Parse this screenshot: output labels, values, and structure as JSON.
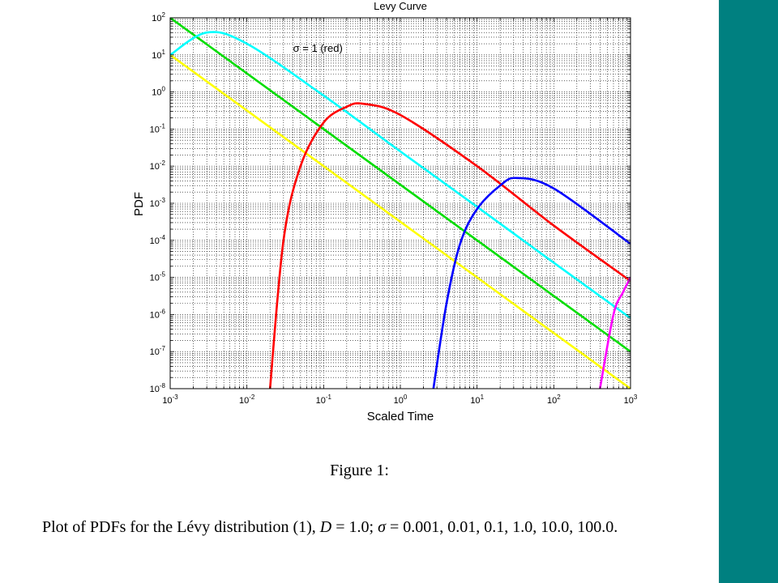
{
  "sidebar": {
    "color": "#008080"
  },
  "chart_data": {
    "type": "line",
    "title": "Levy Curve",
    "xlabel": "Scaled Time",
    "ylabel": "PDF",
    "xscale": "log",
    "yscale": "log",
    "xlim": [
      0.001,
      1000
    ],
    "ylim": [
      1e-08,
      100
    ],
    "grid": true,
    "x_tick_labels": [
      [
        "10",
        "-3"
      ],
      [
        "10",
        "-2"
      ],
      [
        "10",
        "-1"
      ],
      [
        "10",
        "0"
      ],
      [
        "10",
        "1"
      ],
      [
        "10",
        "2"
      ],
      [
        "10",
        "3"
      ]
    ],
    "y_tick_labels": [
      [
        "10",
        "-8"
      ],
      [
        "10",
        "-7"
      ],
      [
        "10",
        "-6"
      ],
      [
        "10",
        "-5"
      ],
      [
        "10",
        "-4"
      ],
      [
        "10",
        "-3"
      ],
      [
        "10",
        "-2"
      ],
      [
        "10",
        "-1"
      ],
      [
        "10",
        "0"
      ],
      [
        "10",
        "1"
      ],
      [
        "10",
        "2"
      ]
    ],
    "annotation": {
      "text": "σ = 1 (red)",
      "x": 0.04,
      "y": 12
    },
    "series": [
      {
        "color": "#ffff00",
        "points": [
          [
            0.001,
            10
          ],
          [
            1000,
            1e-08
          ]
        ]
      },
      {
        "color": "#00dd00",
        "points": [
          [
            0.001,
            100
          ],
          [
            1000,
            1e-07
          ]
        ]
      },
      {
        "color": "#00ffff",
        "points": [
          [
            0.001,
            10
          ],
          [
            0.003,
            40
          ],
          [
            0.01,
            20
          ],
          [
            0.1,
            0.8
          ],
          [
            1,
            0.025
          ],
          [
            10,
            0.0008
          ],
          [
            100,
            2.5e-05
          ],
          [
            1000,
            8e-07
          ]
        ]
      },
      {
        "color": "#ff0000",
        "points": [
          [
            0.02,
            1e-08
          ],
          [
            0.03,
            0.0001
          ],
          [
            0.05,
            0.01
          ],
          [
            0.1,
            0.15
          ],
          [
            0.2,
            0.4
          ],
          [
            0.33,
            0.48
          ],
          [
            1,
            0.24
          ],
          [
            10,
            0.01
          ],
          [
            100,
            0.00025
          ],
          [
            1000,
            8e-06
          ]
        ]
      },
      {
        "color": "#0000ff",
        "points": [
          [
            2.7,
            1e-08
          ],
          [
            4,
            2e-06
          ],
          [
            6,
            8e-05
          ],
          [
            10,
            0.0007
          ],
          [
            20,
            0.003
          ],
          [
            33,
            0.0048
          ],
          [
            100,
            0.0025
          ],
          [
            1000,
            8e-05
          ]
        ]
      },
      {
        "color": "#ff00ff",
        "points": [
          [
            400,
            1e-08
          ],
          [
            600,
            1e-06
          ],
          [
            800,
            4e-06
          ],
          [
            1000,
            1e-05
          ]
        ]
      }
    ]
  },
  "figure": {
    "label": "Figure 1:",
    "caption_prefix": "Plot of PDFs for the Lévy distribution (1), ",
    "caption_d": "D",
    "caption_d_val": " = 1.0;  ",
    "caption_sigma": "σ",
    "caption_sigma_val": " = 0.001, 0.01, 0.1, 1.0, 10.0, 100.0."
  }
}
